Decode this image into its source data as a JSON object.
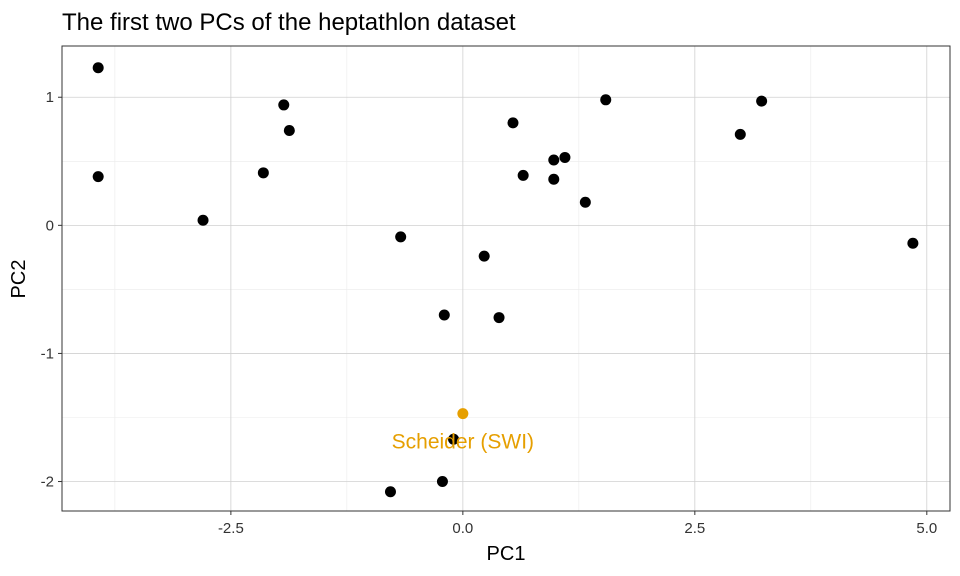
{
  "chart_data": {
    "type": "scatter",
    "title": "The first two PCs of the heptathlon dataset",
    "xlabel": "PC1",
    "ylabel": "PC2",
    "xlim": [
      -4.32,
      5.25
    ],
    "ylim": [
      -2.23,
      1.4
    ],
    "x_ticks": [
      -2.5,
      0.0,
      2.5,
      5.0
    ],
    "x_tick_labels": [
      "-2.5",
      "0.0",
      "2.5",
      "5.0"
    ],
    "x_minor_ticks": [
      -3.75,
      -1.25,
      1.25,
      3.75
    ],
    "y_ticks": [
      -2,
      -1,
      0,
      1
    ],
    "y_tick_labels": [
      "-2",
      "-1",
      "0",
      "1"
    ],
    "y_minor_ticks": [
      -1.5,
      -0.5,
      0.5
    ],
    "grid": true,
    "point_color": "#000000",
    "highlight_color": "#E69F00",
    "series": [
      {
        "x": [
          -3.93,
          -3.93,
          -2.8,
          -2.15,
          -1.93,
          -1.87,
          -0.67,
          -0.2,
          0.23,
          0.39,
          0.54,
          0.65,
          0.98,
          0.98,
          1.1,
          1.32,
          1.54,
          2.99,
          3.22,
          4.85,
          -0.1,
          -0.78,
          -0.22
        ],
        "y": [
          1.23,
          0.38,
          0.04,
          0.41,
          0.94,
          0.74,
          -0.09,
          -0.7,
          -0.24,
          -0.72,
          0.8,
          0.39,
          0.51,
          0.36,
          0.53,
          0.18,
          0.98,
          0.71,
          0.97,
          -0.14,
          -1.67,
          -2.08,
          -2.0
        ]
      }
    ],
    "highlight": {
      "x": 0.0,
      "y": -1.47,
      "label": "Scheider (SWI)"
    }
  }
}
